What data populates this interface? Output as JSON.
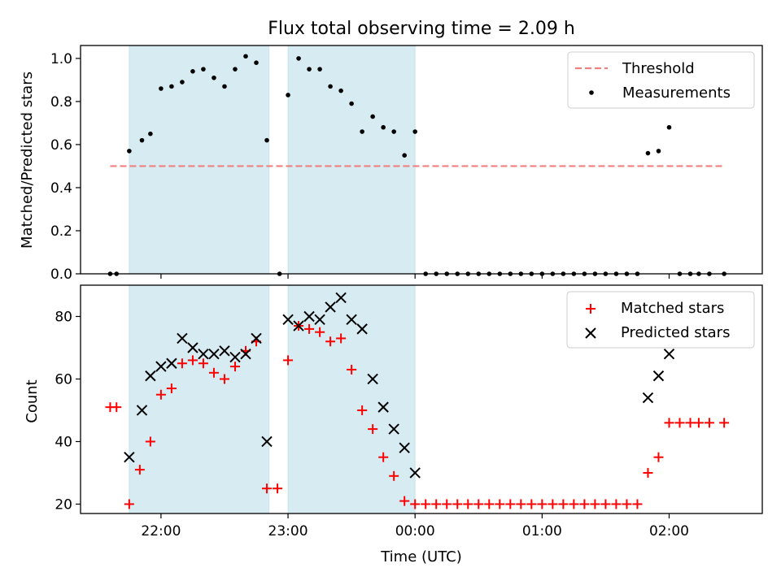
{
  "chart_data": [
    {
      "type": "scatter",
      "title": "Flux total observing time = 2.09 h",
      "ylabel": "Matched/Predicted stars",
      "xlabel": "",
      "xlim": [
        "21:22",
        "02:44"
      ],
      "ylim": [
        0,
        1.06
      ],
      "x_ticks": [
        "22:00",
        "23:00",
        "00:00",
        "01:00",
        "02:00"
      ],
      "y_ticks": [
        "0.0",
        "0.2",
        "0.4",
        "0.6",
        "0.8",
        "1.0"
      ],
      "legend_position": "top-right",
      "shaded_intervals": [
        [
          "21:45",
          "22:51"
        ],
        [
          "23:00",
          "00:00"
        ]
      ],
      "threshold": {
        "name": "Threshold",
        "value": 0.5,
        "x_range": [
          "21:36",
          "02:26"
        ],
        "color": "#f08080"
      },
      "series": [
        {
          "name": "Measurements",
          "color": "#000000",
          "points": [
            [
              "21:36",
              0.0
            ],
            [
              "21:39",
              0.0
            ],
            [
              "21:45",
              0.57
            ],
            [
              "21:51",
              0.62
            ],
            [
              "21:55",
              0.65
            ],
            [
              "22:00",
              0.86
            ],
            [
              "22:05",
              0.87
            ],
            [
              "22:10",
              0.89
            ],
            [
              "22:15",
              0.94
            ],
            [
              "22:20",
              0.95
            ],
            [
              "22:25",
              0.91
            ],
            [
              "22:30",
              0.87
            ],
            [
              "22:35",
              0.95
            ],
            [
              "22:40",
              1.01
            ],
            [
              "22:45",
              0.98
            ],
            [
              "22:50",
              0.62
            ],
            [
              "22:56",
              0.0
            ],
            [
              "23:00",
              0.83
            ],
            [
              "23:05",
              1.0
            ],
            [
              "23:10",
              0.95
            ],
            [
              "23:15",
              0.95
            ],
            [
              "23:20",
              0.87
            ],
            [
              "23:25",
              0.85
            ],
            [
              "23:30",
              0.79
            ],
            [
              "23:35",
              0.66
            ],
            [
              "23:40",
              0.73
            ],
            [
              "23:45",
              0.68
            ],
            [
              "23:50",
              0.66
            ],
            [
              "23:55",
              0.55
            ],
            [
              "00:00",
              0.66
            ],
            [
              "00:05",
              0.0
            ],
            [
              "00:10",
              0.0
            ],
            [
              "00:15",
              0.0
            ],
            [
              "00:20",
              0.0
            ],
            [
              "00:25",
              0.0
            ],
            [
              "00:30",
              0.0
            ],
            [
              "00:35",
              0.0
            ],
            [
              "00:40",
              0.0
            ],
            [
              "00:45",
              0.0
            ],
            [
              "00:50",
              0.0
            ],
            [
              "00:55",
              0.0
            ],
            [
              "01:00",
              0.0
            ],
            [
              "01:05",
              0.0
            ],
            [
              "01:10",
              0.0
            ],
            [
              "01:15",
              0.0
            ],
            [
              "01:20",
              0.0
            ],
            [
              "01:25",
              0.0
            ],
            [
              "01:30",
              0.0
            ],
            [
              "01:35",
              0.0
            ],
            [
              "01:40",
              0.0
            ],
            [
              "01:45",
              0.0
            ],
            [
              "01:50",
              0.56
            ],
            [
              "01:55",
              0.57
            ],
            [
              "02:00",
              0.68
            ],
            [
              "02:05",
              0.0
            ],
            [
              "02:10",
              0.0
            ],
            [
              "02:14",
              0.0
            ],
            [
              "02:19",
              0.0
            ],
            [
              "02:26",
              0.0
            ]
          ]
        }
      ]
    },
    {
      "type": "scatter",
      "title": "",
      "ylabel": "Count",
      "xlabel": "Time (UTC)",
      "xlim": [
        "21:22",
        "02:44"
      ],
      "ylim": [
        17,
        90
      ],
      "x_ticks": [
        "22:00",
        "23:00",
        "00:00",
        "01:00",
        "02:00"
      ],
      "y_ticks": [
        "20",
        "40",
        "60",
        "80"
      ],
      "legend_position": "top-right",
      "shaded_intervals": [
        [
          "21:45",
          "22:51"
        ],
        [
          "23:00",
          "00:00"
        ]
      ],
      "series": [
        {
          "name": "Matched stars",
          "color": "#ff0000",
          "marker": "plus",
          "points": [
            [
              "21:36",
              51
            ],
            [
              "21:39",
              51
            ],
            [
              "21:45",
              20
            ],
            [
              "21:50",
              31
            ],
            [
              "21:55",
              40
            ],
            [
              "22:00",
              55
            ],
            [
              "22:05",
              57
            ],
            [
              "22:10",
              65
            ],
            [
              "22:15",
              66
            ],
            [
              "22:20",
              65
            ],
            [
              "22:25",
              62
            ],
            [
              "22:30",
              60
            ],
            [
              "22:35",
              64
            ],
            [
              "22:40",
              69
            ],
            [
              "22:45",
              72
            ],
            [
              "22:50",
              25
            ],
            [
              "22:55",
              25
            ],
            [
              "23:00",
              66
            ],
            [
              "23:05",
              77
            ],
            [
              "23:10",
              76
            ],
            [
              "23:15",
              75
            ],
            [
              "23:20",
              72
            ],
            [
              "23:25",
              73
            ],
            [
              "23:30",
              63
            ],
            [
              "23:35",
              50
            ],
            [
              "23:40",
              44
            ],
            [
              "23:45",
              35
            ],
            [
              "23:50",
              29
            ],
            [
              "23:55",
              21
            ],
            [
              "00:00",
              20
            ],
            [
              "00:05",
              20
            ],
            [
              "00:10",
              20
            ],
            [
              "00:15",
              20
            ],
            [
              "00:20",
              20
            ],
            [
              "00:25",
              20
            ],
            [
              "00:30",
              20
            ],
            [
              "00:35",
              20
            ],
            [
              "00:40",
              20
            ],
            [
              "00:45",
              20
            ],
            [
              "00:50",
              20
            ],
            [
              "00:55",
              20
            ],
            [
              "01:00",
              20
            ],
            [
              "01:05",
              20
            ],
            [
              "01:10",
              20
            ],
            [
              "01:15",
              20
            ],
            [
              "01:20",
              20
            ],
            [
              "01:25",
              20
            ],
            [
              "01:30",
              20
            ],
            [
              "01:35",
              20
            ],
            [
              "01:40",
              20
            ],
            [
              "01:45",
              20
            ],
            [
              "01:50",
              30
            ],
            [
              "01:55",
              35
            ],
            [
              "02:00",
              46
            ],
            [
              "02:05",
              46
            ],
            [
              "02:10",
              46
            ],
            [
              "02:14",
              46
            ],
            [
              "02:19",
              46
            ],
            [
              "02:26",
              46
            ]
          ]
        },
        {
          "name": "Predicted stars",
          "color": "#000000",
          "marker": "x",
          "points": [
            [
              "21:45",
              35
            ],
            [
              "21:51",
              50
            ],
            [
              "21:55",
              61
            ],
            [
              "22:00",
              64
            ],
            [
              "22:05",
              65
            ],
            [
              "22:10",
              73
            ],
            [
              "22:15",
              70
            ],
            [
              "22:20",
              68
            ],
            [
              "22:25",
              68
            ],
            [
              "22:30",
              69
            ],
            [
              "22:35",
              67
            ],
            [
              "22:40",
              68
            ],
            [
              "22:45",
              73
            ],
            [
              "22:50",
              40
            ],
            [
              "23:00",
              79
            ],
            [
              "23:05",
              77
            ],
            [
              "23:10",
              80
            ],
            [
              "23:15",
              79
            ],
            [
              "23:20",
              83
            ],
            [
              "23:25",
              86
            ],
            [
              "23:30",
              79
            ],
            [
              "23:35",
              76
            ],
            [
              "23:40",
              60
            ],
            [
              "23:45",
              51
            ],
            [
              "23:50",
              44
            ],
            [
              "23:55",
              38
            ],
            [
              "00:00",
              30
            ],
            [
              "01:50",
              54
            ],
            [
              "01:55",
              61
            ],
            [
              "02:00",
              68
            ]
          ]
        }
      ]
    }
  ]
}
